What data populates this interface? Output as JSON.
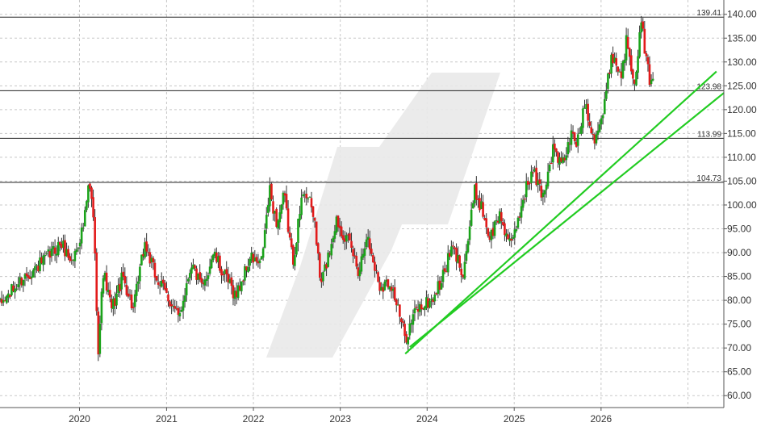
{
  "chart_data": {
    "type": "candlestick",
    "title": "",
    "xlabel": "",
    "ylabel": "",
    "ylim": [
      57.5,
      143.0
    ],
    "xlim": [
      "2019-02-01",
      "2027-06-01"
    ],
    "grid": true,
    "y_ticks": [
      "60.00",
      "65.00",
      "70.00",
      "75.00",
      "80.00",
      "85.00",
      "90.00",
      "95.00",
      "100.00",
      "105.00",
      "110.00",
      "115.00",
      "120.00",
      "125.00",
      "130.00",
      "135.00",
      "140.00"
    ],
    "x_ticks": [
      {
        "label": "2020",
        "date": "2020-01-01"
      },
      {
        "label": "2021",
        "date": "2021-01-01"
      },
      {
        "label": "2022",
        "date": "2022-01-01"
      },
      {
        "label": "2023",
        "date": "2023-01-01"
      },
      {
        "label": "2024",
        "date": "2024-01-01"
      },
      {
        "label": "2025",
        "date": "2025-01-01"
      },
      {
        "label": "2026",
        "date": "2026-01-01"
      }
    ],
    "levels": [
      {
        "value": 139.41,
        "label": "139.41"
      },
      {
        "value": 123.98,
        "label": "123.98"
      },
      {
        "value": 113.99,
        "label": "113.99"
      },
      {
        "value": 104.73,
        "label": "104.73"
      }
    ],
    "trendlines": [
      {
        "from": [
          "2023-10-01",
          68.8
        ],
        "to": [
          "2027-05-01",
          128.0
        ]
      },
      {
        "from": [
          "2023-10-20",
          70.2
        ],
        "to": [
          "2027-06-01",
          123.5
        ]
      }
    ],
    "anchors": [
      [
        "2019-02-01",
        79.0
      ],
      [
        "2019-05-15",
        85.0
      ],
      [
        "2019-08-01",
        88.0
      ],
      [
        "2019-10-15",
        92.0
      ],
      [
        "2019-12-01",
        88.0
      ],
      [
        "2020-01-20",
        96.0
      ],
      [
        "2020-02-10",
        104.5
      ],
      [
        "2020-02-28",
        98.0
      ],
      [
        "2020-03-20",
        70.0
      ],
      [
        "2020-04-10",
        86.0
      ],
      [
        "2020-05-15",
        78.0
      ],
      [
        "2020-07-01",
        85.0
      ],
      [
        "2020-08-15",
        78.0
      ],
      [
        "2020-10-01",
        92.0
      ],
      [
        "2020-11-15",
        85.0
      ],
      [
        "2021-01-15",
        80.0
      ],
      [
        "2021-02-20",
        76.0
      ],
      [
        "2021-04-15",
        88.0
      ],
      [
        "2021-06-01",
        82.0
      ],
      [
        "2021-07-15",
        90.0
      ],
      [
        "2021-09-01",
        85.0
      ],
      [
        "2021-10-20",
        81.0
      ],
      [
        "2021-12-20",
        89.0
      ],
      [
        "2022-02-01",
        87.0
      ],
      [
        "2022-03-10",
        103.0
      ],
      [
        "2022-04-10",
        96.0
      ],
      [
        "2022-05-10",
        102.0
      ],
      [
        "2022-06-15",
        88.0
      ],
      [
        "2022-08-01",
        104.0
      ],
      [
        "2022-09-15",
        97.0
      ],
      [
        "2022-10-10",
        83.0
      ],
      [
        "2022-11-15",
        90.0
      ],
      [
        "2022-12-15",
        97.0
      ],
      [
        "2023-02-15",
        91.0
      ],
      [
        "2023-03-20",
        86.0
      ],
      [
        "2023-04-20",
        94.0
      ],
      [
        "2023-06-15",
        83.0
      ],
      [
        "2023-08-01",
        84.0
      ],
      [
        "2023-10-01",
        72.0
      ],
      [
        "2023-11-15",
        78.0
      ],
      [
        "2024-01-20",
        80.0
      ],
      [
        "2024-03-01",
        84.0
      ],
      [
        "2024-04-15",
        91.0
      ],
      [
        "2024-06-01",
        86.0
      ],
      [
        "2024-07-20",
        103.0
      ],
      [
        "2024-08-20",
        99.0
      ],
      [
        "2024-09-20",
        93.0
      ],
      [
        "2024-11-01",
        98.0
      ],
      [
        "2024-12-20",
        91.0
      ],
      [
        "2025-02-15",
        103.0
      ],
      [
        "2025-03-20",
        107.0
      ],
      [
        "2025-05-01",
        102.0
      ],
      [
        "2025-06-15",
        112.0
      ],
      [
        "2025-07-20",
        108.0
      ],
      [
        "2025-09-01",
        115.0
      ],
      [
        "2025-09-25",
        113.0
      ],
      [
        "2025-10-25",
        122.0
      ],
      [
        "2025-12-01",
        114.0
      ],
      [
        "2026-01-10",
        119.0
      ],
      [
        "2026-02-15",
        132.0
      ],
      [
        "2026-03-25",
        127.0
      ],
      [
        "2026-04-20",
        135.0
      ],
      [
        "2026-05-20",
        126.0
      ],
      [
        "2026-06-20",
        138.0
      ],
      [
        "2026-07-25",
        125.0
      ],
      [
        "2026-08-10",
        125.0
      ]
    ]
  }
}
